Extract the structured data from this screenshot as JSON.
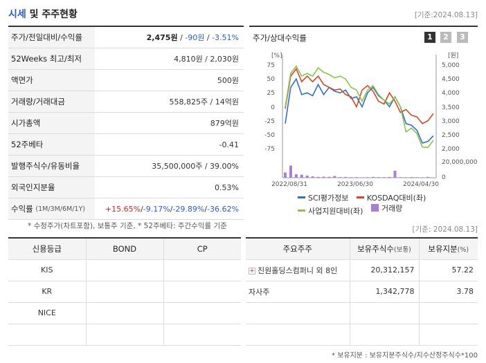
{
  "header": {
    "title_blue": "시세",
    "title_rest": " 및 주주현황",
    "date": "[기준:2024.08.13]"
  },
  "quote": {
    "rows": [
      {
        "label": "주가/전일대비/수익률",
        "price": "2,475원",
        "sep1": " / ",
        "change": "-90원",
        "sep2": " / ",
        "rate": "-3.51%"
      },
      {
        "label": "52Weeks 최고/최저",
        "value": "4,810원 / 2,030원"
      },
      {
        "label": "액면가",
        "value": "500원"
      },
      {
        "label": "거래량/거래대금",
        "value": "558,825주 / 14억원"
      },
      {
        "label": "시가총액",
        "value": "879억원"
      },
      {
        "label": "52주베타",
        "value": "-0.41"
      },
      {
        "label": "발행주식수/유동비율",
        "value": "35,500,000주 / 39.00%"
      },
      {
        "label": "외국인지분율",
        "value": "0.53%"
      },
      {
        "label": "수익률",
        "label_sub": "(1M/3M/6M/1Y)",
        "r1": "+15.65%",
        "r2": "-9.17%",
        "r3": "-29.89%",
        "r4": "-36.62%",
        "sep": "/"
      }
    ],
    "note": "* 수정주가(차트포함), 보통주 기준, * 52주베타: 주간수익률 기준"
  },
  "chart_panel": {
    "title": "주가/상대수익률",
    "tabs": [
      "1",
      "2",
      "3"
    ],
    "date": "[기준: 2024.08.13]"
  },
  "chart_data": {
    "type": "line",
    "left_axis_unit": "[%]",
    "right_axis_unit": "[원]",
    "left_ticks": [
      75,
      50,
      25,
      0,
      -25,
      -50,
      -75
    ],
    "left_tick_labels": [
      "75",
      "50",
      "25",
      "0",
      "-25",
      "-50",
      "-75"
    ],
    "right_ticks": [
      5000,
      4500,
      4000,
      3500,
      3000,
      2500,
      2000
    ],
    "right_tick_labels": [
      "5,000",
      "4,500",
      "4,000",
      "3,500",
      "3,000",
      "2,500",
      "2,000"
    ],
    "volume_tick_labels": [
      "20,000,000",
      "0"
    ],
    "volume_max": 20000000,
    "x_tick_labels": [
      "2022/08/31",
      "2023/06/30",
      "2024/04/30"
    ],
    "ylim": [
      -90,
      85
    ],
    "series": [
      {
        "name": "SCI평가정보",
        "color": "#2b6fd6",
        "values": [
          -30,
          35,
          50,
          22,
          25,
          20,
          40,
          22,
          35,
          28,
          25,
          30,
          15,
          18,
          0,
          25,
          35,
          20,
          12,
          0,
          18,
          0,
          -30,
          -33,
          -42,
          -65,
          -62,
          -52
        ]
      },
      {
        "name": "KOSDAQ대비(좌)",
        "color": "#d6461e",
        "values": [
          -3,
          55,
          68,
          45,
          55,
          45,
          55,
          40,
          35,
          30,
          32,
          22,
          18,
          0,
          30,
          38,
          28,
          10,
          5,
          25,
          10,
          -10,
          -5,
          -15,
          -18,
          -30,
          -25,
          -12
        ]
      },
      {
        "name": "사업지원대비(좌)",
        "color": "#8bc34a",
        "values": [
          0,
          60,
          73,
          55,
          60,
          55,
          70,
          62,
          58,
          52,
          55,
          50,
          35,
          30,
          10,
          30,
          38,
          22,
          12,
          5,
          18,
          0,
          -45,
          -38,
          -48,
          -72,
          -73,
          -60
        ]
      },
      {
        "name": "거래량",
        "color": "#a87fd8",
        "values": [
          6000000,
          14000000,
          4000000,
          3500000,
          2500000,
          1500000,
          1000000,
          1200000,
          1000000,
          2000000,
          800000,
          900000,
          600000,
          700000,
          500000,
          600000,
          900000,
          700000,
          600000,
          900000,
          8000000,
          600000,
          500000,
          700000,
          600000,
          500000,
          900000,
          400000
        ]
      }
    ]
  },
  "credit": {
    "headers": [
      "신용등급",
      "BOND",
      "CP"
    ],
    "rows": [
      [
        "KIS",
        "",
        ""
      ],
      [
        "KR",
        "",
        ""
      ],
      [
        "NICE",
        "",
        ""
      ],
      [
        "",
        "",
        ""
      ]
    ]
  },
  "holders": {
    "header_main": "주요주주",
    "header_shares": "보유주식수",
    "header_shares_sub": "(보통)",
    "header_ratio": "보유지분",
    "header_ratio_sub": "(%)",
    "rows": [
      {
        "name": "진원홀딩스컴퍼니 외 8인",
        "shares": "20,312,157",
        "ratio": "57.22",
        "expandable": true
      },
      {
        "name": "자사주",
        "shares": "1,342,778",
        "ratio": "3.78",
        "expandable": false
      },
      {
        "name": "",
        "shares": "",
        "ratio": "",
        "expandable": false
      },
      {
        "name": "",
        "shares": "",
        "ratio": "",
        "expandable": false
      }
    ],
    "note": "* 보유지분 : 보유지분주식수/지수산정주식수*100"
  }
}
